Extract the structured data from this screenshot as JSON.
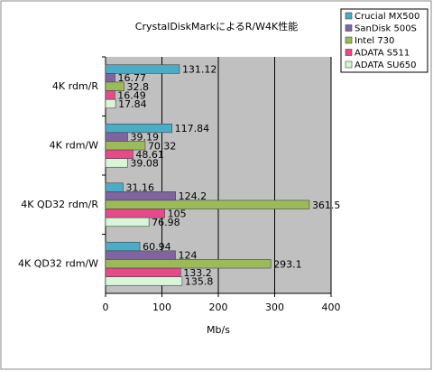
{
  "chart_data": {
    "type": "bar",
    "orientation": "horizontal",
    "title": "CrystalDiskMarkによるR/W4K性能",
    "x_label": "Mb/s",
    "categories": [
      "4K rdm/R",
      "4K rdm/W",
      "4K QD32 rdm/R",
      "4K QD32 rdm/W"
    ],
    "series": [
      {
        "name": "Crucial MX500",
        "color": "#4bacc6",
        "values": [
          131.12,
          117.84,
          31.16,
          60.94
        ]
      },
      {
        "name": "SanDisk 500S",
        "color": "#8064a2",
        "values": [
          16.77,
          39.19,
          124.2,
          124
        ]
      },
      {
        "name": "Intel 730",
        "color": "#9bbb59",
        "values": [
          32.8,
          70.32,
          361.5,
          293.1
        ]
      },
      {
        "name": "ADATA S511",
        "color": "#e8498a",
        "values": [
          16.49,
          48.61,
          105,
          133.2
        ]
      },
      {
        "name": "ADATA SU650",
        "color": "#d8f5d8",
        "values": [
          17.84,
          39.08,
          76.98,
          135.8
        ]
      }
    ],
    "xlim": [
      0,
      400
    ],
    "xticks": [
      0,
      100,
      200,
      300,
      400
    ],
    "grid": true
  }
}
